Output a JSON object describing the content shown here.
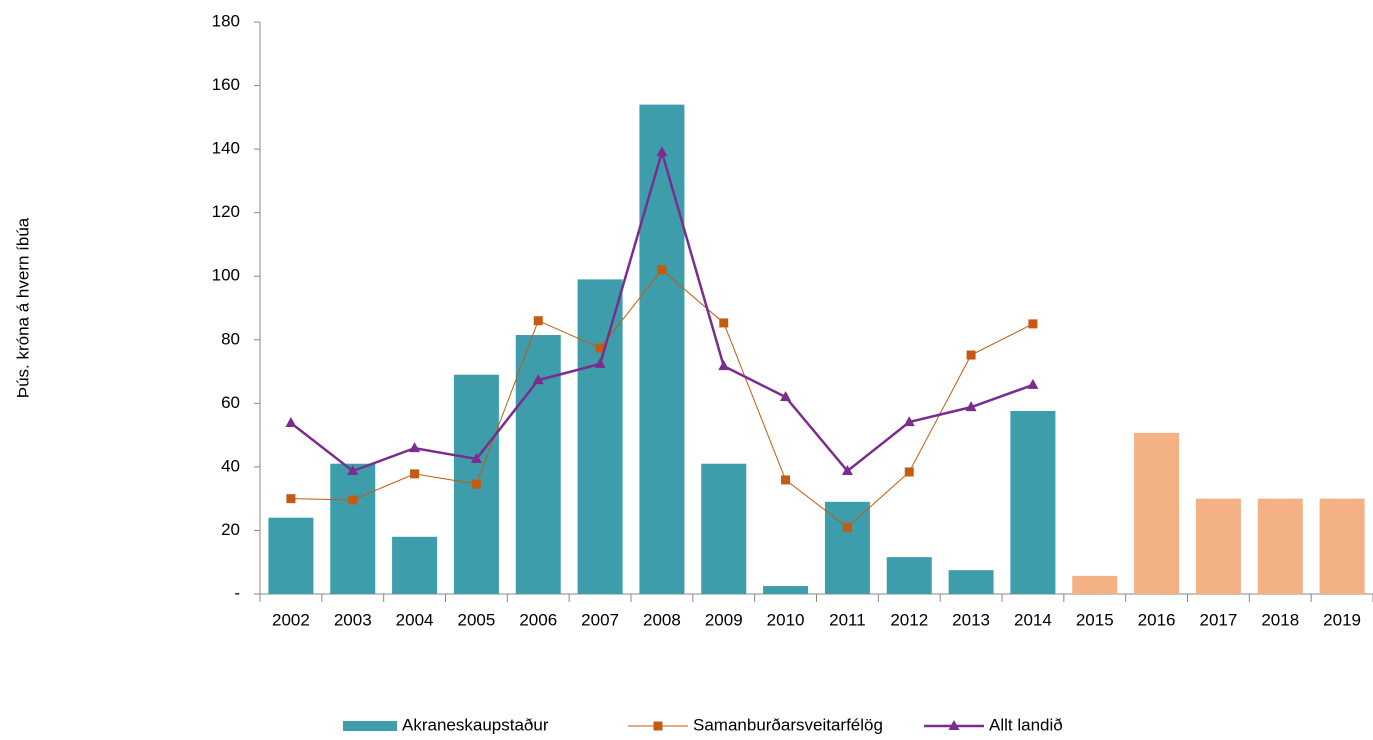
{
  "chart_data": {
    "type": "bar_line",
    "y_label": "Þús. króna á hvern íbúa",
    "categories": [
      "2002",
      "2003",
      "2004",
      "2005",
      "2006",
      "2007",
      "2008",
      "2009",
      "2010",
      "2011",
      "2012",
      "2013",
      "2014",
      "2015",
      "2016",
      "2017",
      "2018",
      "2019"
    ],
    "series": [
      {
        "name": "Akraneskaupstaður",
        "type": "bar",
        "color": "#3e9dab",
        "colors": [
          "#3e9dab",
          "#3e9dab",
          "#3e9dab",
          "#3e9dab",
          "#3e9dab",
          "#3e9dab",
          "#3e9dab",
          "#3e9dab",
          "#3e9dab",
          "#3e9dab",
          "#3e9dab",
          "#3e9dab",
          "#3e9dab",
          "#f4b183",
          "#f4b183",
          "#f4b183",
          "#f4b183",
          "#f4b183"
        ],
        "values": [
          24,
          41,
          18,
          69,
          81.5,
          99,
          154,
          41,
          2.5,
          29,
          11.6,
          7.5,
          57.6,
          5.7,
          50.7,
          30,
          30,
          30
        ]
      },
      {
        "name": "Samanburðarsveitarfélög",
        "type": "line",
        "marker": "square",
        "color": "#c55a11",
        "values": [
          30,
          29.6,
          37.8,
          34.6,
          86,
          77.4,
          102,
          85.3,
          35.9,
          21,
          38.4,
          75.2,
          85,
          null,
          null,
          null,
          null,
          null
        ]
      },
      {
        "name": "Allt landið",
        "type": "line",
        "marker": "triangle",
        "color": "#7b2d8e",
        "values": [
          53.8,
          38.7,
          45.9,
          42.5,
          67.3,
          72.4,
          139,
          71.7,
          62,
          38.7,
          54.1,
          58.8,
          65.8,
          null,
          null,
          null,
          null,
          null
        ]
      }
    ],
    "ylim": [
      0,
      180
    ],
    "yticks": [
      {
        "value": 0,
        "label": "-"
      },
      20,
      40,
      60,
      80,
      100,
      120,
      140,
      160,
      180
    ],
    "legend": "bottom"
  }
}
